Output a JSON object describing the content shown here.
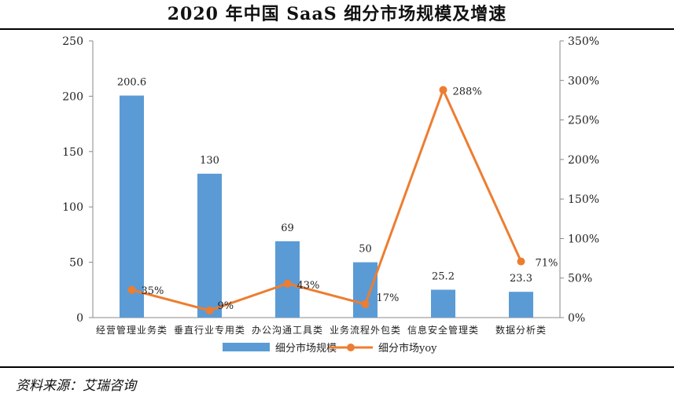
{
  "title": "2020 年中国 SaaS 细分市场规模及增速",
  "source": "资料来源：艾瑞咨询",
  "chart_data": {
    "type": "bar+line",
    "categories": [
      "经营管理业务类",
      "垂直行业专用类",
      "办公沟通工具类",
      "业务流程外包类",
      "信息安全管理类",
      "数据分析类"
    ],
    "series": [
      {
        "name": "细分市场规模",
        "type": "bar",
        "axis": "left",
        "color": "#5b9bd5",
        "values": [
          200.6,
          130,
          69,
          50,
          25.2,
          23.3
        ],
        "labels": [
          "200.6",
          "130",
          "69",
          "50",
          "25.2",
          "23.3"
        ]
      },
      {
        "name": "细分市场yoy",
        "type": "line",
        "axis": "right",
        "color": "#ed7d31",
        "values": [
          35,
          9,
          43,
          17,
          288,
          71
        ],
        "labels": [
          "35%",
          "9%",
          "43%",
          "17%",
          "288%",
          "71%"
        ]
      }
    ],
    "y_left": {
      "min": 0,
      "max": 250,
      "ticks": [
        0,
        50,
        100,
        150,
        200,
        250
      ],
      "tick_labels": [
        "0",
        "50",
        "100",
        "150",
        "200",
        "250"
      ]
    },
    "y_right": {
      "min": 0,
      "max": 350,
      "ticks": [
        0,
        50,
        100,
        150,
        200,
        250,
        300,
        350
      ],
      "tick_labels": [
        "0%",
        "50%",
        "100%",
        "150%",
        "200%",
        "250%",
        "300%",
        "350%"
      ]
    },
    "grid": false,
    "legend_position": "bottom"
  }
}
